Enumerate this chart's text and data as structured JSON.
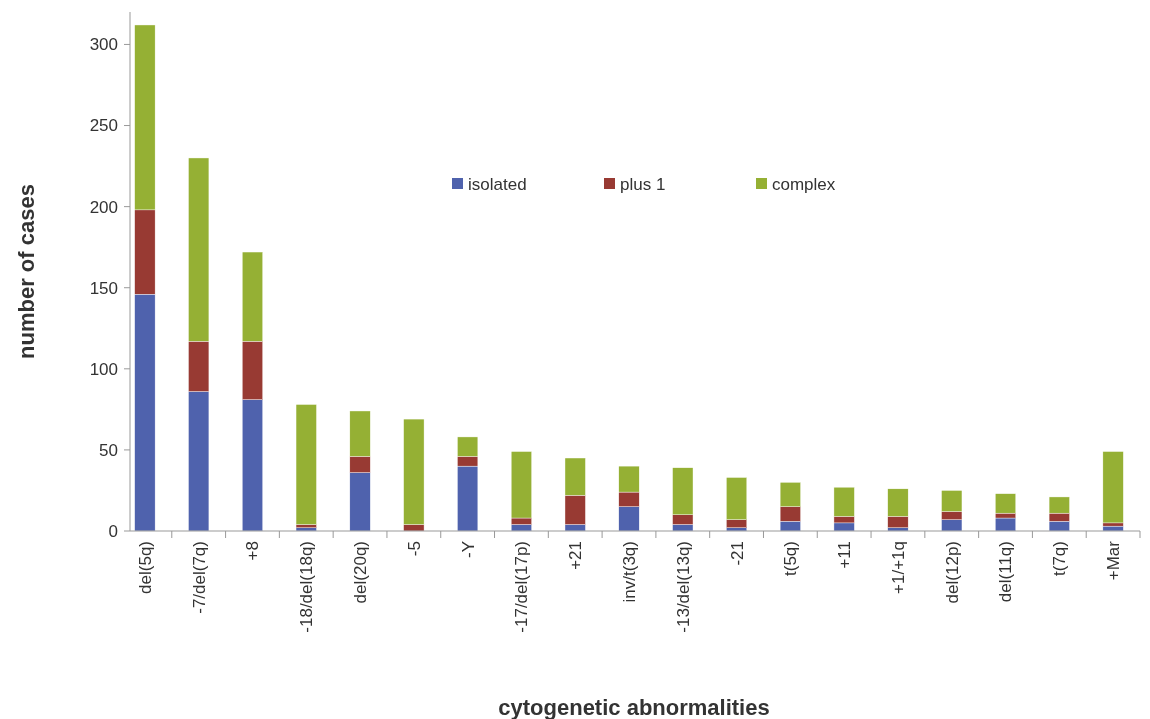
{
  "chart_data": {
    "type": "bar",
    "stacked": true,
    "xlabel": "cytogenetic abnormalities",
    "ylabel": "number of cases",
    "categories": [
      "del(5q)",
      "-7/del(7q)",
      "+8",
      "-18/del(18q)",
      "del(20q)",
      "-5",
      "-Y",
      "-17/del(17p)",
      "+21",
      "inv/t(3q)",
      "-13/del(13q)",
      "-21",
      "t(5q)",
      "+11",
      "+1/+1q",
      "del(12p)",
      "del(11q)",
      "t(7q)",
      "+Mar"
    ],
    "series": [
      {
        "name": "isolated",
        "color": "#4f62ad",
        "values": [
          146,
          86,
          81,
          2,
          36,
          0,
          40,
          4,
          4,
          15,
          4,
          2,
          6,
          5,
          2,
          7,
          8,
          6,
          3
        ]
      },
      {
        "name": "plus 1",
        "color": "#983a33",
        "values": [
          52,
          31,
          36,
          2,
          10,
          4,
          6,
          4,
          18,
          9,
          6,
          5,
          9,
          4,
          7,
          5,
          3,
          5,
          2
        ]
      },
      {
        "name": "complex",
        "color": "#95b034",
        "values": [
          114,
          113,
          55,
          74,
          28,
          65,
          12,
          41,
          23,
          16,
          29,
          26,
          15,
          18,
          17,
          13,
          12,
          10,
          44
        ]
      }
    ],
    "ylim": [
      0,
      320
    ],
    "yticks": [
      0,
      50,
      100,
      150,
      200,
      250,
      300
    ],
    "grid": false,
    "legend": "top"
  }
}
